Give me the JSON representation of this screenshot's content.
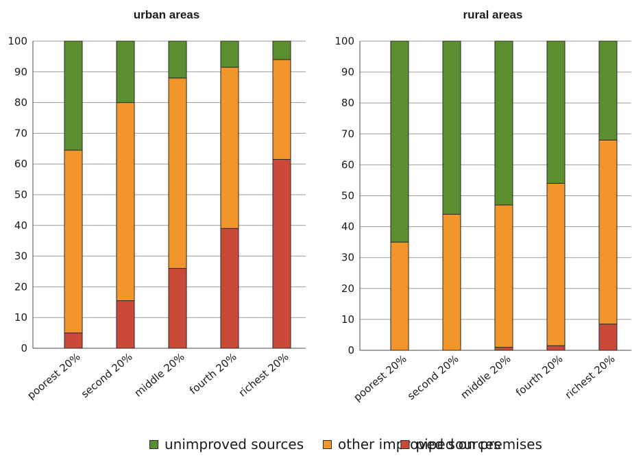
{
  "chart_data": [
    {
      "type": "bar",
      "stacked": true,
      "title": "urban areas",
      "categories": [
        "poorest 20%",
        "second 20%",
        "middle 20%",
        "fourth 20%",
        "richest 20%"
      ],
      "series": [
        {
          "name": "piped on premises",
          "color": "#c94a38",
          "values": [
            5,
            15.5,
            26,
            39,
            61.5
          ]
        },
        {
          "name": "other improved sources",
          "color": "#f0962a",
          "values": [
            59.5,
            64.5,
            62,
            52.5,
            32.5
          ]
        },
        {
          "name": "unimproved sources",
          "color": "#5c8f2f",
          "values": [
            35.5,
            20,
            12,
            8.5,
            6
          ]
        }
      ],
      "ylim": [
        0,
        100
      ],
      "yticks": [
        0,
        10,
        20,
        30,
        40,
        50,
        60,
        70,
        80,
        90,
        100
      ],
      "grid": true
    },
    {
      "type": "bar",
      "stacked": true,
      "title": "rural areas",
      "categories": [
        "poorest 20%",
        "second 20%",
        "middle 20%",
        "fourth 20%",
        "richest 20%"
      ],
      "series": [
        {
          "name": "piped on premises",
          "color": "#c94a38",
          "values": [
            0,
            0,
            1,
            1.5,
            8.5
          ]
        },
        {
          "name": "other improved sources",
          "color": "#f0962a",
          "values": [
            35,
            44,
            46,
            52.5,
            59.5
          ]
        },
        {
          "name": "unimproved sources",
          "color": "#5c8f2f",
          "values": [
            65,
            56,
            53,
            46,
            32
          ]
        }
      ],
      "ylim": [
        0,
        100
      ],
      "yticks": [
        0,
        10,
        20,
        30,
        40,
        50,
        60,
        70,
        80,
        90,
        100
      ],
      "grid": true
    }
  ],
  "legend": {
    "placement": "bottom",
    "items": [
      {
        "label": "unimproved sources",
        "color": "#5c8f2f"
      },
      {
        "label": "other improved sources",
        "color": "#f0962a"
      },
      {
        "label": "piped on premises",
        "color": "#c94a38"
      }
    ]
  }
}
